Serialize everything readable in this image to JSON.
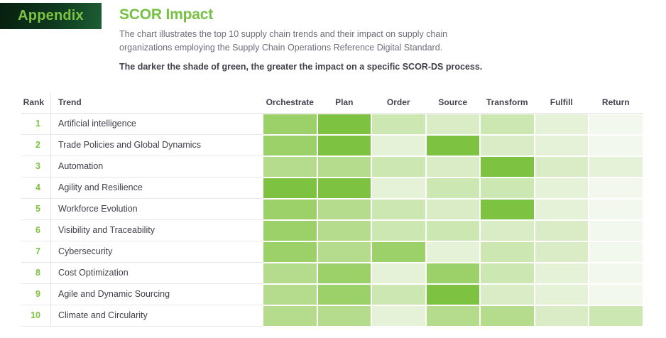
{
  "page": {
    "appendix_label": "Appendix",
    "title": "SCOR Impact",
    "description_lines": [
      "The chart illustrates the top 10 supply chain trends and their impact on supply chain",
      "organizations employing the Supply Chain Operations Reference Digital Standard."
    ],
    "note": "The darker the shade of green, the greater the impact on a specific SCOR-DS process."
  },
  "colors": {
    "brand_green": "#7dc242",
    "title_green": "#76c043",
    "appendix_bg_dark": "#071f0e",
    "appendix_bg_light": "#1d5f33",
    "header_text": "#43434e",
    "body_text": "#3f3f49",
    "muted_text": "#6e6e78",
    "divider": "#e3e3e7"
  },
  "chart_data": {
    "type": "heatmap",
    "title": "SCOR Impact",
    "rank_header": "Rank",
    "trend_header": "Trend",
    "columns": [
      "Orchestrate",
      "Plan",
      "Order",
      "Source",
      "Transform",
      "Fulfill",
      "Return"
    ],
    "legend": "Impact level per SCOR-DS process, 0 = lowest impact (near white) to 6 = highest impact (darkest green)",
    "palette": [
      "#f3f8ee",
      "#e6f2d8",
      "#d9ecc5",
      "#cde7b2",
      "#b5dc8d",
      "#9cd169",
      "#7dc241"
    ],
    "rows": [
      {
        "rank": 1,
        "trend": "Artificial intelligence",
        "impact": [
          5,
          6,
          3,
          2,
          3,
          1,
          0
        ]
      },
      {
        "rank": 2,
        "trend": "Trade Policies and Global Dynamics",
        "impact": [
          5,
          6,
          1,
          6,
          2,
          1,
          0
        ]
      },
      {
        "rank": 3,
        "trend": "Automation",
        "impact": [
          4,
          4,
          3,
          2,
          6,
          2,
          1
        ]
      },
      {
        "rank": 4,
        "trend": "Agility and Resilience",
        "impact": [
          6,
          6,
          1,
          3,
          3,
          1,
          0
        ]
      },
      {
        "rank": 5,
        "trend": "Workforce Evolution",
        "impact": [
          5,
          4,
          3,
          2,
          6,
          1,
          0
        ]
      },
      {
        "rank": 6,
        "trend": "Visibility and Traceability",
        "impact": [
          5,
          4,
          3,
          3,
          2,
          2,
          0
        ]
      },
      {
        "rank": 7,
        "trend": "Cybersecurity",
        "impact": [
          5,
          4,
          5,
          1,
          3,
          2,
          0
        ]
      },
      {
        "rank": 8,
        "trend": "Cost Optimization",
        "impact": [
          4,
          5,
          1,
          5,
          3,
          1,
          0
        ]
      },
      {
        "rank": 9,
        "trend": "Agile and Dynamic Sourcing",
        "impact": [
          4,
          5,
          3,
          6,
          2,
          1,
          0
        ]
      },
      {
        "rank": 10,
        "trend": "Climate and Circularity",
        "impact": [
          4,
          4,
          1,
          4,
          4,
          2,
          3
        ]
      }
    ]
  }
}
